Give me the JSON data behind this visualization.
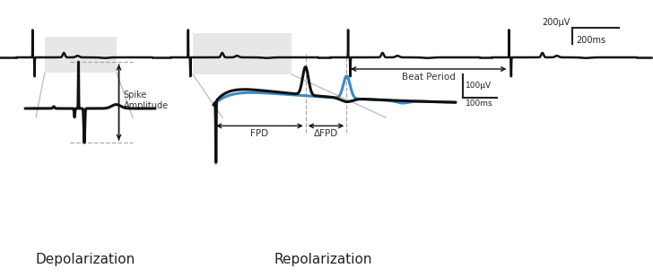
{
  "bg_color": "#ffffff",
  "signal_color": "#111111",
  "blue_color": "#3a8cc4",
  "gray_box_color": "#d8d8d8",
  "gray_line_color": "#c0c0c0",
  "dash_color": "#aaaaaa",
  "arrow_color": "#111111",
  "text_color": "#333333",
  "scale_uV_top": "200μV",
  "scale_ms_top": "200ms",
  "scale_uV_bot": "100μV",
  "scale_ms_bot": "100ms",
  "beat_period_label": "Beat Period",
  "fpd_label": "FPD",
  "delta_fpd_label": "ΔFPD",
  "spike_amp_label": "Spike\nAmplitude",
  "depol_label": "Depolarization",
  "repol_label": "Repolarization"
}
